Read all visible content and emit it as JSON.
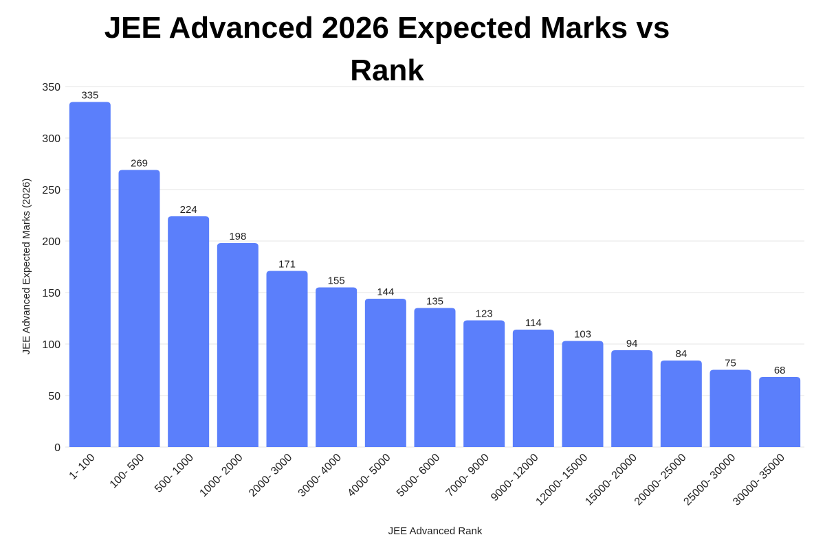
{
  "chart_data": {
    "type": "bar",
    "title": "JEE Advanced 2026 Expected Marks vs Rank",
    "xlabel": "JEE Advanced Rank",
    "ylabel": "JEE Advanced Expected Marks (2026)",
    "categories": [
      "1- 100",
      "100- 500",
      "500- 1000",
      "1000- 2000",
      "2000- 3000",
      "3000- 4000",
      "4000- 5000",
      "5000- 6000",
      "7000- 9000",
      "9000- 12000",
      "12000- 15000",
      "15000- 20000",
      "20000- 25000",
      "25000- 30000",
      "30000- 35000"
    ],
    "values": [
      335,
      269,
      224,
      198,
      171,
      155,
      144,
      135,
      123,
      114,
      103,
      94,
      84,
      75,
      68
    ],
    "ylim": [
      0,
      350
    ],
    "yticks": [
      0,
      50,
      100,
      150,
      200,
      250,
      300,
      350
    ],
    "grid": true,
    "legend": "none",
    "colors": {
      "bar": "#5b7ffb",
      "grid": "#e6e6e6",
      "text": "#222222"
    }
  }
}
